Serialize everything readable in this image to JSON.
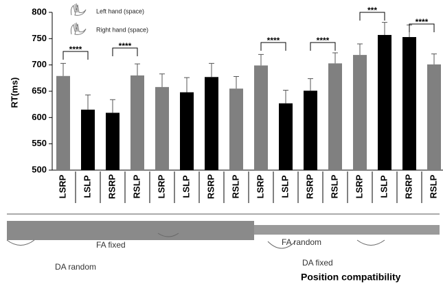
{
  "chart_data": {
    "type": "bar",
    "y_label": "RT(ms)",
    "categories": [
      "LSRP",
      "LSLP",
      "RSRP",
      "RSLP",
      "LSRP",
      "LSLP",
      "RSRP",
      "RSLP",
      "LSRP",
      "LSLP",
      "RSRP",
      "RSLP",
      "LSRP",
      "LSLP",
      "RSRP",
      "RSLP"
    ],
    "values": [
      679,
      615,
      609,
      680,
      658,
      648,
      677,
      655,
      699,
      627,
      651,
      703,
      719,
      757,
      753,
      701
    ],
    "errors": [
      24,
      28,
      25,
      22,
      25,
      28,
      26,
      23,
      21,
      25,
      23,
      20,
      21,
      24,
      23,
      20
    ],
    "colors": [
      "#808080",
      "#000000",
      "#000000",
      "#808080",
      "#808080",
      "#000000",
      "#000000",
      "#808080",
      "#808080",
      "#000000",
      "#000000",
      "#808080",
      "#808080",
      "#000000",
      "#000000",
      "#808080"
    ],
    "ylim": [
      500,
      800
    ],
    "yticks": [
      500,
      550,
      600,
      650,
      700,
      750,
      800
    ],
    "significance": [
      "****",
      "****",
      "****",
      "****",
      "***",
      "****"
    ],
    "legend": [
      "Left hand (space)",
      "Right hand (space)"
    ],
    "group_labels": [
      "FA fixed",
      "DA random",
      "FA random",
      "DA fixed"
    ],
    "x_label": "Position compatibility"
  }
}
